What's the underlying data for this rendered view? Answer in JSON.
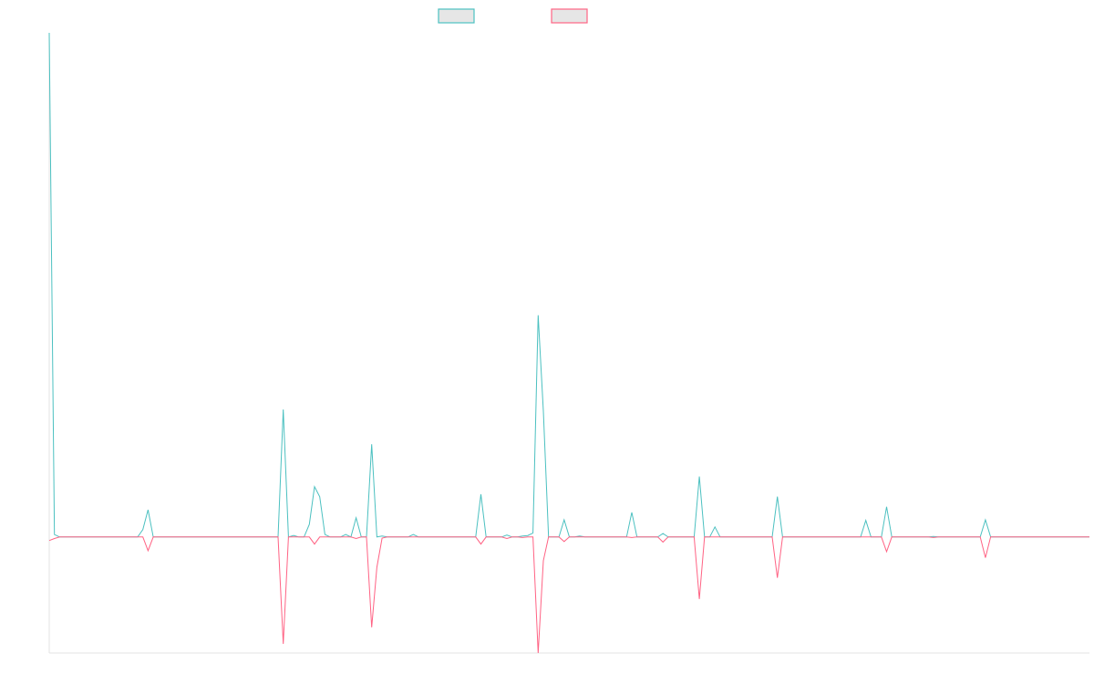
{
  "chart_data": {
    "type": "line",
    "title": "",
    "xlabel": "",
    "ylabel": "",
    "xlim": [
      0,
      200
    ],
    "ylim": [
      -23,
      100
    ],
    "grid": false,
    "legend_position": "top-center",
    "series": [
      {
        "name": "",
        "color": "#4bc0c0",
        "points": [
          [
            0,
            100
          ],
          [
            1,
            0.5
          ],
          [
            18,
            1.5
          ],
          [
            19,
            5.4
          ],
          [
            45,
            25.3
          ],
          [
            47,
            0.3
          ],
          [
            50,
            2.5
          ],
          [
            51,
            10
          ],
          [
            52,
            8
          ],
          [
            53,
            0.5
          ],
          [
            57,
            0.5
          ],
          [
            59,
            3.8
          ],
          [
            62,
            18.4
          ],
          [
            64,
            0.2
          ],
          [
            70,
            0.5
          ],
          [
            83,
            8.5
          ],
          [
            88,
            0.4
          ],
          [
            91,
            0.2
          ],
          [
            92,
            0.3
          ],
          [
            93,
            0.8
          ],
          [
            94,
            44
          ],
          [
            95,
            25
          ],
          [
            99,
            3.4
          ],
          [
            102,
            0.2
          ],
          [
            112,
            4.9
          ],
          [
            118,
            0.7
          ],
          [
            125,
            12
          ],
          [
            128,
            2
          ],
          [
            140,
            8
          ],
          [
            157,
            3.3
          ],
          [
            161,
            6
          ],
          [
            170,
            0.1
          ],
          [
            180,
            3.4
          ]
        ]
      },
      {
        "name": "",
        "color": "#ff6384",
        "points": [
          [
            0,
            -0.7
          ],
          [
            1,
            -0.3
          ],
          [
            19,
            -2.7
          ],
          [
            45,
            -21.2
          ],
          [
            51,
            -1.4
          ],
          [
            59,
            -0.3
          ],
          [
            62,
            -17.9
          ],
          [
            63,
            -6
          ],
          [
            64,
            -0.2
          ],
          [
            83,
            -1.4
          ],
          [
            88,
            -0.3
          ],
          [
            91,
            -0.1
          ],
          [
            94,
            -23
          ],
          [
            95,
            -4.7
          ],
          [
            99,
            -0.9
          ],
          [
            112,
            -0.1
          ],
          [
            118,
            -1
          ],
          [
            125,
            -12.3
          ],
          [
            140,
            -8.1
          ],
          [
            161,
            -2.9
          ],
          [
            170,
            -0.1
          ],
          [
            180,
            -4.1
          ]
        ]
      }
    ]
  }
}
